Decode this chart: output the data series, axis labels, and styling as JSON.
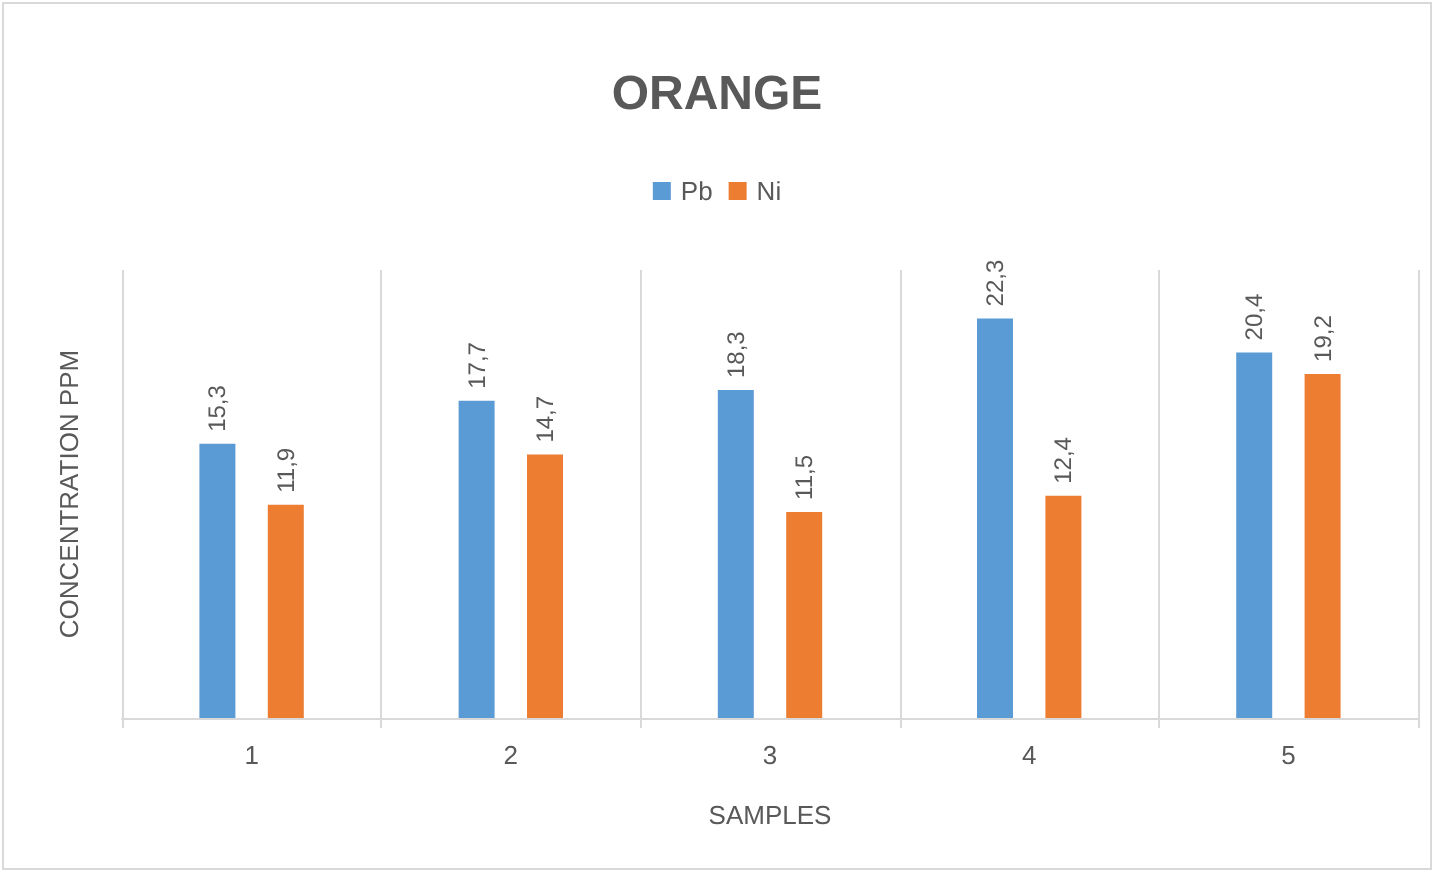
{
  "chart_data": {
    "type": "bar",
    "title": "ORANGE",
    "xlabel": "SAMPLES",
    "ylabel": "CONCENTRATION PPM",
    "categories": [
      "1",
      "2",
      "3",
      "4",
      "5"
    ],
    "series": [
      {
        "name": "Pb",
        "color": "#5b9bd5",
        "values": [
          15.3,
          17.7,
          18.3,
          22.3,
          20.4
        ],
        "value_labels": [
          "15,3",
          "17,7",
          "18,3",
          "22,3",
          "20,4"
        ]
      },
      {
        "name": "Ni",
        "color": "#ed7d31",
        "values": [
          11.9,
          14.7,
          11.5,
          12.4,
          19.2
        ],
        "value_labels": [
          "11,9",
          "14,7",
          "11,5",
          "12,4",
          "19,2"
        ]
      }
    ],
    "ylim": [
      0,
      25
    ],
    "tick_labels": "x",
    "grid": "x",
    "legend": "top"
  }
}
